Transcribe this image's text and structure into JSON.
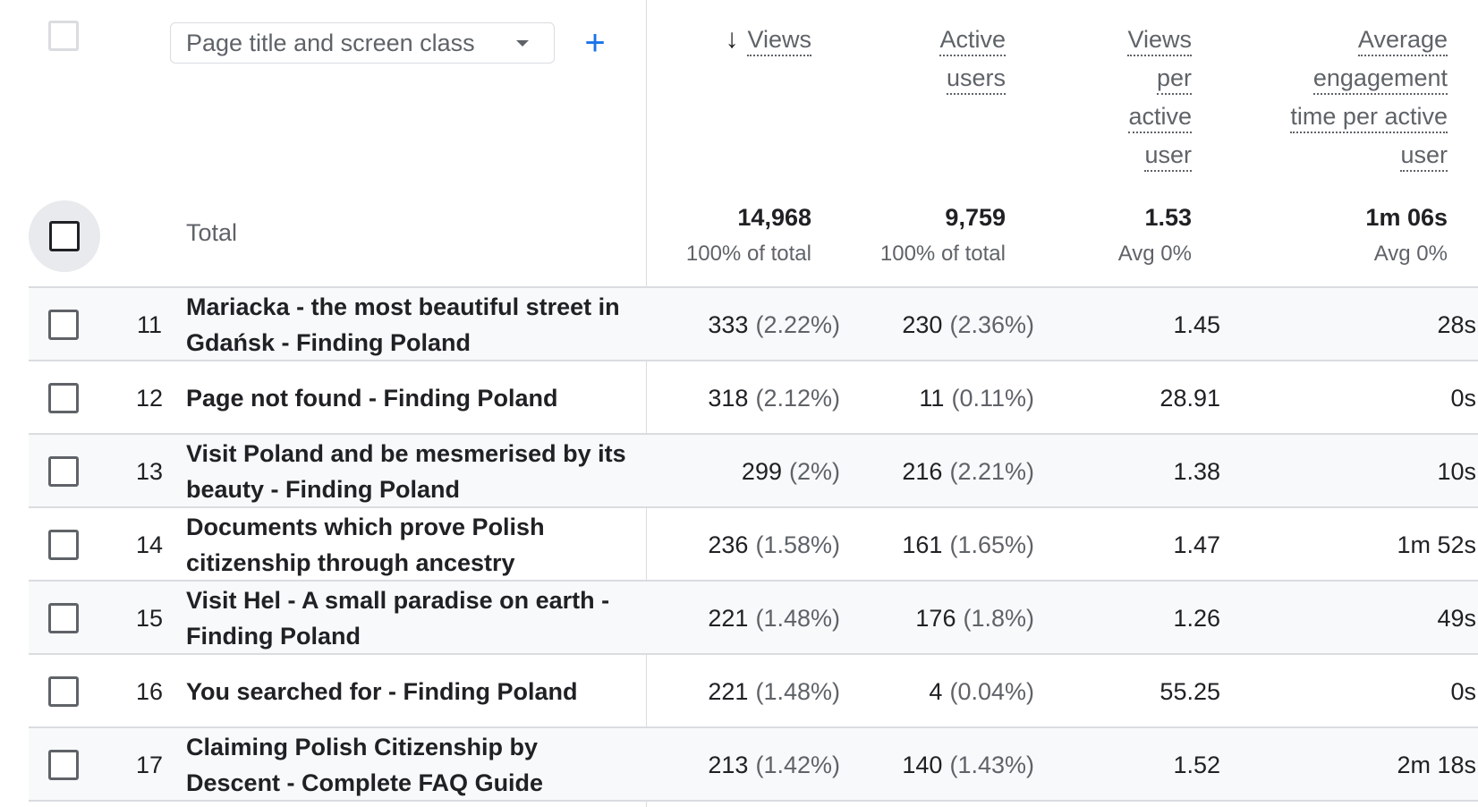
{
  "dimension": {
    "selected": "Page title and screen class",
    "add_label": "+"
  },
  "columns": {
    "views": "Views",
    "sort_indicator": "↓",
    "active_users_line1": "Active",
    "active_users_line2": "users",
    "vpau_line1": "Views",
    "vpau_line2": "per",
    "vpau_line3": "active",
    "vpau_line4": "user",
    "aet_line1": "Average",
    "aet_line2": "engagement",
    "aet_line3": "time per active",
    "aet_line4": "user"
  },
  "totals": {
    "label": "Total",
    "views": "14,968",
    "views_sub": "100% of total",
    "active_users": "9,759",
    "active_users_sub": "100% of total",
    "views_per_active_user": "1.53",
    "views_per_active_user_sub": "Avg 0%",
    "avg_engagement_time": "1m 06s",
    "avg_engagement_time_sub": "Avg 0%"
  },
  "rows": [
    {
      "index": "11",
      "title": "Mariacka - the most beautiful street in Gdańsk - Finding Poland",
      "views": "333",
      "views_pct": "(2.22%)",
      "active_users": "230",
      "active_users_pct": "(2.36%)",
      "vpau": "1.45",
      "aet": "28s"
    },
    {
      "index": "12",
      "title": "Page not found - Finding Poland",
      "views": "318",
      "views_pct": "(2.12%)",
      "active_users": "11",
      "active_users_pct": "(0.11%)",
      "vpau": "28.91",
      "aet": "0s"
    },
    {
      "index": "13",
      "title": "Visit Poland and be mesmerised by its beauty - Finding Poland",
      "views": "299",
      "views_pct": "(2%)",
      "active_users": "216",
      "active_users_pct": "(2.21%)",
      "vpau": "1.38",
      "aet": "10s"
    },
    {
      "index": "14",
      "title": "Documents which prove Polish citizenship through ancestry",
      "views": "236",
      "views_pct": "(1.58%)",
      "active_users": "161",
      "active_users_pct": "(1.65%)",
      "vpau": "1.47",
      "aet": "1m 52s"
    },
    {
      "index": "15",
      "title": "Visit Hel - A small paradise on earth - Finding Poland",
      "views": "221",
      "views_pct": "(1.48%)",
      "active_users": "176",
      "active_users_pct": "(1.8%)",
      "vpau": "1.26",
      "aet": "49s"
    },
    {
      "index": "16",
      "title": "You searched for - Finding Poland",
      "views": "221",
      "views_pct": "(1.48%)",
      "active_users": "4",
      "active_users_pct": "(0.04%)",
      "vpau": "55.25",
      "aet": "0s"
    },
    {
      "index": "17",
      "title": "Claiming Polish Citizenship by Descent - Complete FAQ Guide",
      "views": "213",
      "views_pct": "(1.42%)",
      "active_users": "140",
      "active_users_pct": "(1.43%)",
      "vpau": "1.52",
      "aet": "2m 18s"
    }
  ]
}
